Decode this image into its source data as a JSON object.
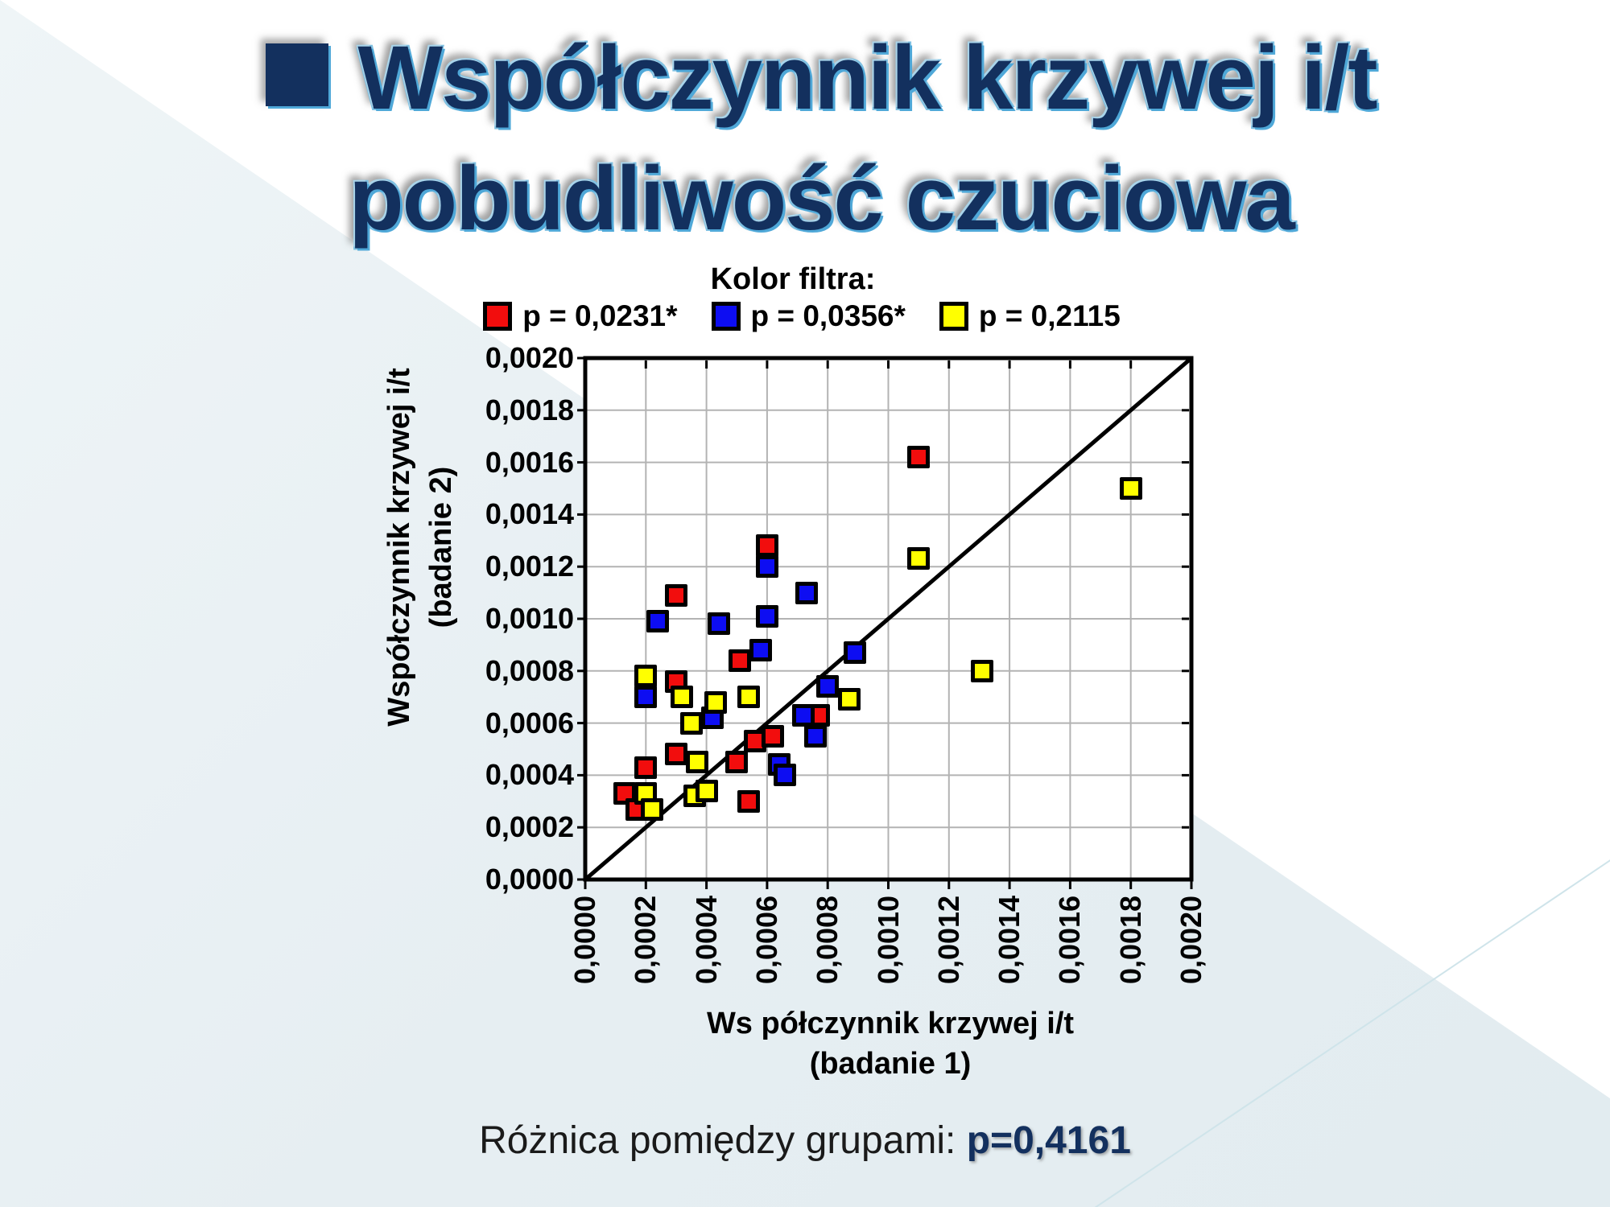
{
  "slide": {
    "title_line1": "Współczynnik krzywej i/t",
    "title_line2": "pobudliwość czuciowa",
    "footer_prefix": "Różnica pomiędzy grupami: ",
    "footer_value": "p=0,4161"
  },
  "colors": {
    "title_navy": "#13305e",
    "title_glow_cyan": "#4fa8d8",
    "background_light": "#e6eef2",
    "gridline_gray": "#b3b3b3",
    "series_red": "#f20d0d",
    "series_blue": "#0d0df2",
    "series_yellow": "#ffff00"
  },
  "chart_data": {
    "type": "scatter",
    "legend_title": "Kolor filtra:",
    "legend_position": "top",
    "grid": true,
    "identity_line": true,
    "xlabel_line1": "Ws półczynnik krzywej i/t",
    "xlabel_line2": "(badanie 1)",
    "ylabel_line1": "Współczynnik krzywej i/t",
    "ylabel_line2": "(badanie 2)",
    "xlim": [
      0.0,
      0.002
    ],
    "ylim": [
      0.0,
      0.002
    ],
    "x_ticks": [
      "0,0000",
      "0,0002",
      "0,0004",
      "0,0006",
      "0,0008",
      "0,0010",
      "0,0012",
      "0,0014",
      "0,0016",
      "0,0018",
      "0,0020"
    ],
    "y_ticks": [
      "0,0000",
      "0,0002",
      "0,0004",
      "0,0006",
      "0,0008",
      "0,0010",
      "0,0012",
      "0,0014",
      "0,0016",
      "0,0018",
      "0,0020"
    ],
    "series": [
      {
        "name": "p = 0,0231*",
        "color": "#f20d0d",
        "points": [
          [
            0.0011,
            0.00162
          ],
          [
            0.0006,
            0.00128
          ],
          [
            0.0003,
            0.00109
          ],
          [
            0.00051,
            0.00084
          ],
          [
            0.0003,
            0.00076
          ],
          [
            0.00077,
            0.00063
          ],
          [
            0.00056,
            0.00053
          ],
          [
            0.00062,
            0.00055
          ],
          [
            0.0005,
            0.00045
          ],
          [
            0.0002,
            0.00043
          ],
          [
            0.0003,
            0.00048
          ],
          [
            0.00013,
            0.00033
          ],
          [
            0.00017,
            0.00027
          ],
          [
            0.00054,
            0.0003
          ]
        ]
      },
      {
        "name": "p = 0,0356*",
        "color": "#0d0df2",
        "points": [
          [
            0.0006,
            0.0012
          ],
          [
            0.00073,
            0.0011
          ],
          [
            0.00024,
            0.00099
          ],
          [
            0.00044,
            0.00098
          ],
          [
            0.0006,
            0.00101
          ],
          [
            0.00058,
            0.00088
          ],
          [
            0.00089,
            0.00087
          ],
          [
            0.0008,
            0.00074
          ],
          [
            0.0002,
            0.0007
          ],
          [
            0.00042,
            0.00062
          ],
          [
            0.00072,
            0.00063
          ],
          [
            0.00076,
            0.00055
          ],
          [
            0.00064,
            0.00044
          ],
          [
            0.00066,
            0.0004
          ]
        ]
      },
      {
        "name": "p = 0,2115",
        "color": "#ffff00",
        "points": [
          [
            0.0018,
            0.0015
          ],
          [
            0.0011,
            0.00123
          ],
          [
            0.00131,
            0.0008
          ],
          [
            0.0002,
            0.00078
          ],
          [
            0.00032,
            0.0007
          ],
          [
            0.00043,
            0.00068
          ],
          [
            0.00054,
            0.0007
          ],
          [
            0.00087,
            0.00069
          ],
          [
            0.00035,
            0.0006
          ],
          [
            0.00037,
            0.00045
          ],
          [
            0.0002,
            0.00033
          ],
          [
            0.00022,
            0.00027
          ],
          [
            0.00036,
            0.00032
          ],
          [
            0.0004,
            0.00034
          ]
        ]
      }
    ]
  }
}
